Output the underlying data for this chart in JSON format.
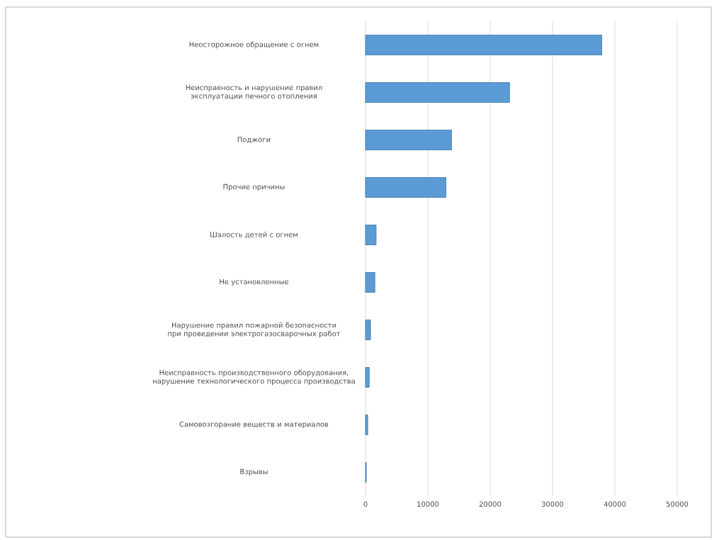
{
  "chart_data": {
    "type": "bar",
    "orientation": "horizontal",
    "categories": [
      "Неосторожное обращение с огнем",
      "Неисправность и нарушение правил эксплуатации печного отопления",
      "Поджоги",
      "Прочие причины",
      "Шалость детей с огнем",
      "Не установленные",
      "Нарушение правил пожарной безопасности при проведении электрогазосварочных работ",
      "Неисправность производственного оборудования, нарушение технологического процесса производства",
      "Самовозгорание веществ и материалов",
      "Взрывы"
    ],
    "values": [
      37900,
      23100,
      13800,
      12900,
      1700,
      1500,
      800,
      600,
      350,
      120
    ],
    "color": "#5b9bd5",
    "xlim": [
      0,
      50000
    ],
    "xticks": [
      0,
      10000,
      20000,
      30000,
      40000,
      50000
    ],
    "grid": "x"
  }
}
